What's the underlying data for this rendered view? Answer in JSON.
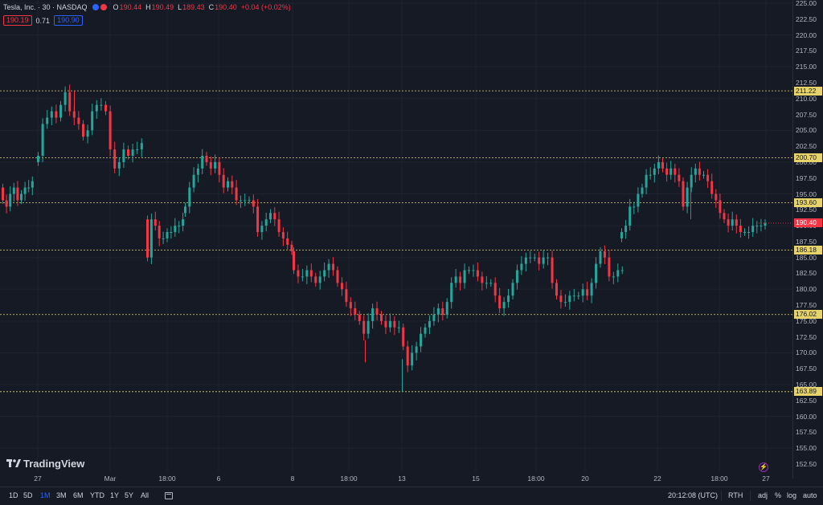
{
  "legend": {
    "symbol": "Tesla, Inc. · 30 · NASDAQ",
    "o_label": "O",
    "o": "190.44",
    "h_label": "H",
    "h": "190.49",
    "l_label": "L",
    "l": "189.43",
    "c_label": "C",
    "c": "190.40",
    "change": "+0.04 (+0.02%)"
  },
  "quote": {
    "bid": "190.19",
    "spread": "0.71",
    "ask": "190.90"
  },
  "brand": {
    "name": "TradingView"
  },
  "price_axis": {
    "ticks": [
      "225.00",
      "222.50",
      "220.00",
      "217.50",
      "215.00",
      "212.50",
      "210.00",
      "207.50",
      "205.00",
      "202.50",
      "200.00",
      "197.50",
      "195.00",
      "192.50",
      "190.00",
      "187.50",
      "185.00",
      "182.50",
      "180.00",
      "177.50",
      "175.00",
      "172.50",
      "170.00",
      "167.50",
      "165.00",
      "162.50",
      "160.00",
      "157.50",
      "155.00",
      "152.50"
    ],
    "levels": [
      "211.22",
      "200.70",
      "193.60",
      "186.18",
      "176.02",
      "163.89"
    ],
    "last_price": "190.40"
  },
  "time_axis": {
    "labels": [
      "27",
      "Mar",
      "18:00",
      "6",
      "8",
      "18:00",
      "13",
      "15",
      "18:00",
      "20",
      "22",
      "18:00",
      "27"
    ]
  },
  "ranges": [
    "1D",
    "5D",
    "1M",
    "3M",
    "6M",
    "YTD",
    "1Y",
    "5Y",
    "All"
  ],
  "active_range": "1M",
  "status": {
    "time": "20:12:08 (UTC)",
    "session": "RTH",
    "adj": "adj",
    "percent": "%",
    "log": "log",
    "auto": "auto"
  },
  "colors": {
    "up": "#26a69a",
    "down": "#f23645",
    "level": "#e6d36a",
    "accent": "#2962ff",
    "background": "#161a25"
  },
  "chart_data": {
    "type": "candlestick",
    "title": "Tesla, Inc. · 30 · NASDAQ",
    "ylim": [
      152.5,
      225
    ],
    "horizontal_levels": [
      211.22,
      200.7,
      193.6,
      186.18,
      176.02,
      163.89
    ],
    "last_price": 190.4,
    "closes": [
      [
        194,
        193,
        195,
        196,
        194,
        195,
        196,
        196,
        197
      ],
      [
        201,
        206,
        207,
        208,
        207,
        209,
        211,
        208,
        207,
        206,
        204,
        205,
        208,
        209,
        209,
        208,
        202,
        199,
        200,
        202,
        201,
        202,
        202,
        203
      ],
      [
        185,
        191,
        190,
        188,
        188,
        189,
        189,
        190,
        190,
        191
      ],
      [
        193,
        196,
        198,
        199,
        201,
        200,
        199,
        200,
        198,
        196,
        197,
        196,
        194,
        194,
        194,
        194,
        193,
        189,
        190,
        191,
        192,
        191,
        189,
        188,
        187,
        186
      ],
      [
        183,
        182,
        182,
        183,
        182,
        181,
        182,
        183,
        184,
        183,
        181,
        180,
        178,
        177,
        176,
        175,
        173,
        175,
        177,
        176,
        175,
        174,
        175,
        174,
        174,
        171,
        168,
        170,
        171,
        173,
        174,
        175,
        176,
        177,
        176,
        178,
        181,
        182,
        181,
        183,
        183,
        183,
        182,
        181,
        181,
        181,
        179,
        177,
        178,
        179,
        181,
        183,
        184,
        185,
        185,
        185,
        184,
        185,
        185,
        181,
        179,
        178,
        178,
        179,
        179,
        179,
        180,
        179,
        181,
        184,
        186,
        185,
        182,
        182,
        183,
        183
      ],
      [
        189,
        190,
        193,
        193,
        195,
        196,
        198,
        198,
        199,
        200,
        199,
        198,
        199,
        198,
        197,
        193,
        196,
        198,
        199,
        198,
        198,
        197,
        195,
        194,
        192,
        191,
        190,
        191,
        190,
        189,
        189,
        189,
        190,
        190,
        190,
        190.4
      ]
    ]
  }
}
